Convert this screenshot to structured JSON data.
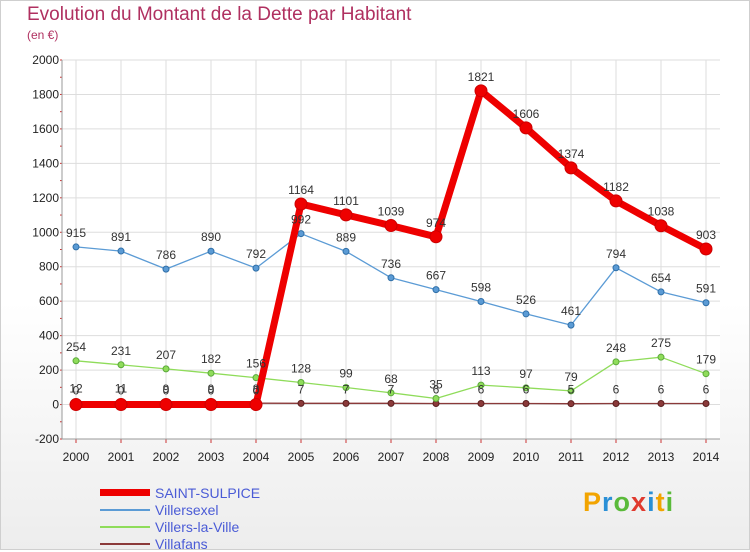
{
  "header": {
    "title": "Evolution du Montant de la Dette par Habitant",
    "unit": "(en €)"
  },
  "logo": {
    "text": "Proxiti"
  },
  "chart_data": {
    "type": "line",
    "title": "Evolution du Montant de la Dette par Habitant",
    "subtitle": "(en €)",
    "xlabel": "",
    "ylabel": "",
    "x": [
      2000,
      2001,
      2002,
      2003,
      2004,
      2005,
      2006,
      2007,
      2008,
      2009,
      2010,
      2011,
      2012,
      2013,
      2014
    ],
    "ylim": [
      -200,
      2000
    ],
    "yticks": [
      -200,
      0,
      200,
      400,
      600,
      800,
      1000,
      1200,
      1400,
      1600,
      1800,
      2000
    ],
    "grid": true,
    "legend": "bottom-left",
    "series": [
      {
        "name": "SAINT-SULPICE",
        "color": "#ee0000",
        "values": [
          0,
          0,
          0,
          0,
          0,
          1164,
          1101,
          1039,
          974,
          1821,
          1606,
          1374,
          1182,
          1038,
          903
        ],
        "labels": [
          "0",
          "0",
          "0",
          "0",
          "0",
          "1164",
          "1101",
          "1039",
          "974",
          "1821",
          "1606",
          "1374",
          "1182",
          "1038",
          "903"
        ]
      },
      {
        "name": "Villersexel",
        "color": "#5b9bd5",
        "values": [
          915,
          891,
          786,
          890,
          792,
          992,
          889,
          736,
          667,
          598,
          526,
          461,
          794,
          654,
          591
        ],
        "labels": [
          "915",
          "891",
          "786",
          "890",
          "792",
          "992",
          "889",
          "736",
          "667",
          "598",
          "526",
          "461",
          "794",
          "654",
          "591"
        ]
      },
      {
        "name": "Villers-la-Ville",
        "color": "#8fdc5a",
        "values": [
          254,
          231,
          207,
          182,
          156,
          128,
          99,
          68,
          35,
          113,
          97,
          79,
          248,
          275,
          179
        ],
        "labels": [
          "254",
          "231",
          "207",
          "182",
          "156",
          "128",
          "99",
          "68",
          "35",
          "113",
          "97",
          "79",
          "248",
          "275",
          "179"
        ]
      },
      {
        "name": "Villafans",
        "color": "#8b3a3a",
        "values": [
          12,
          11,
          9,
          9,
          8,
          7,
          7,
          7,
          6,
          6,
          6,
          5,
          6,
          6,
          6
        ],
        "labels": [
          "12",
          "11",
          "9",
          "9",
          "8",
          "7",
          "7",
          "7",
          "6",
          "6",
          "6",
          "5",
          "6",
          "6",
          "6"
        ]
      }
    ]
  }
}
